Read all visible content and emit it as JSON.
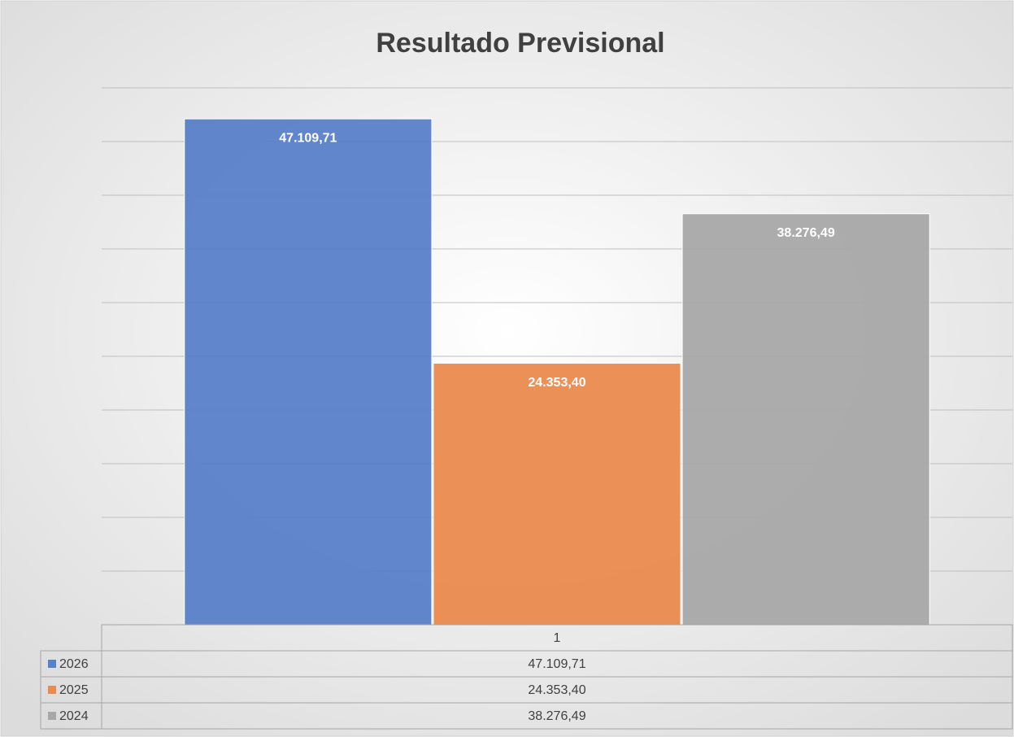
{
  "chart_data": {
    "type": "bar",
    "title": "Resultado Previsional",
    "categories": [
      "1"
    ],
    "series": [
      {
        "name": "2026",
        "color": "#5a80c9",
        "values": [
          47109.71
        ],
        "value_labels": [
          "47.109,71"
        ]
      },
      {
        "name": "2025",
        "color": "#ea8b4e",
        "values": [
          24353.4
        ],
        "value_labels": [
          "24.353,40"
        ]
      },
      {
        "name": "2024",
        "color": "#a8a8a8",
        "values": [
          38276.49
        ],
        "value_labels": [
          "38.276,49"
        ]
      }
    ],
    "ylim": [
      0,
      50000
    ],
    "yticks": [
      0,
      5000,
      10000,
      15000,
      20000,
      25000,
      30000,
      35000,
      40000,
      45000,
      50000
    ],
    "grid": true
  }
}
